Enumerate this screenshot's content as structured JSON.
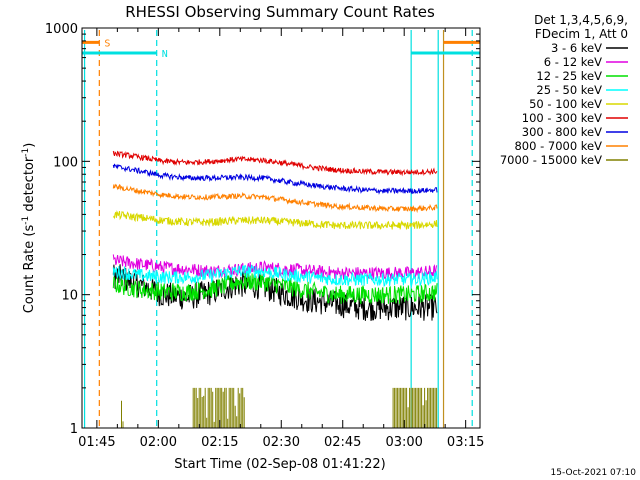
{
  "chart_data": {
    "type": "line",
    "title": "RHESSI Observing Summary Count Rates",
    "xlabel": "Start Time (02-Sep-08 01:41:22)",
    "ylabel_main": "Count Rate (s",
    "ylabel_sup1": "-1",
    "ylabel_mid": " detector",
    "ylabel_sup2": "-1",
    "ylabel_end": ")",
    "y_scale": "log",
    "ylim": [
      1,
      1000
    ],
    "xlim_minutes": [
      101.37,
      198.5
    ],
    "y_ticks": [
      {
        "value": 1,
        "label": "1"
      },
      {
        "value": 10,
        "label": "10"
      },
      {
        "value": 100,
        "label": "100"
      },
      {
        "value": 1000,
        "label": "1000"
      }
    ],
    "x_ticks": [
      {
        "minutes": 105,
        "label": "01:45"
      },
      {
        "minutes": 120,
        "label": "02:00"
      },
      {
        "minutes": 135,
        "label": "02:15"
      },
      {
        "minutes": 150,
        "label": "02:30"
      },
      {
        "minutes": 165,
        "label": "02:45"
      },
      {
        "minutes": 180,
        "label": "03:00"
      },
      {
        "minutes": 195,
        "label": "03:15"
      }
    ],
    "legend_title_1": "Det 1,3,4,5,6,9,",
    "legend_title_2": "FDecim 1, Att 0",
    "legend_placement": "right",
    "series": [
      {
        "name": "3 - 6 keV",
        "color": "#000000",
        "time_range": [
          109,
          188
        ],
        "values": [
          14,
          12,
          10,
          9.5,
          10.5,
          12,
          11.5,
          10,
          9,
          8.5,
          8,
          8,
          8,
          8
        ]
      },
      {
        "name": "6 - 12 keV",
        "color": "#e000e0",
        "time_range": [
          109,
          188
        ],
        "values": [
          18,
          17,
          16,
          15.5,
          15,
          15.5,
          16,
          15.5,
          15,
          14.5,
          14.5,
          14.5,
          14.5,
          15
        ]
      },
      {
        "name": "12 - 25 keV",
        "color": "#00e000",
        "time_range": [
          109,
          188
        ],
        "values": [
          12,
          11,
          10.5,
          10.5,
          11,
          12.5,
          12.5,
          11.5,
          10.5,
          10,
          10,
          10,
          10,
          10.5
        ]
      },
      {
        "name": "25 - 50 keV",
        "color": "#00ffff",
        "time_range": [
          109,
          188
        ],
        "values": [
          15,
          14,
          13.5,
          13.5,
          14,
          15,
          15,
          14,
          13.5,
          13,
          13,
          13,
          13,
          13.5
        ]
      },
      {
        "name": "50 - 100 keV",
        "color": "#d8d800",
        "time_range": [
          109,
          188
        ],
        "values": [
          40,
          38,
          36,
          35,
          35,
          36,
          36,
          35,
          34,
          33,
          33,
          33,
          33,
          34
        ]
      },
      {
        "name": "100 - 300 keV",
        "color": "#e00000",
        "time_range": [
          109,
          188
        ],
        "values": [
          115,
          108,
          100,
          98,
          100,
          104,
          102,
          96,
          90,
          86,
          84,
          83,
          83,
          84
        ]
      },
      {
        "name": "300 - 800 keV",
        "color": "#0000e0",
        "time_range": [
          109,
          188
        ],
        "values": [
          92,
          85,
          78,
          75,
          75,
          76,
          75,
          70,
          66,
          63,
          61,
          60,
          60,
          61
        ]
      },
      {
        "name": "800 - 7000 keV",
        "color": "#ff8000",
        "time_range": [
          109,
          188
        ],
        "values": [
          65,
          60,
          56,
          54,
          54,
          55,
          54,
          51,
          48,
          46,
          45,
          44,
          44,
          45
        ]
      },
      {
        "name": "7000 - 15000 keV",
        "color": "#808000",
        "time_range": [
          109,
          188
        ],
        "values": [
          1,
          1,
          1,
          1,
          1,
          1,
          1,
          1,
          1,
          1,
          1,
          1,
          1,
          1
        ]
      }
    ],
    "flag_bars": [
      {
        "label": "S",
        "color": "#ff8000",
        "y_value": 780,
        "segments": [
          [
            101.37,
            105.6
          ],
          [
            189.6,
            198.5
          ]
        ]
      },
      {
        "label": "N",
        "color": "#00e0e0",
        "y_value": 650,
        "segments": [
          [
            101.37,
            119.6
          ],
          [
            181.7,
            198.5
          ]
        ]
      }
    ],
    "vertical_lines": [
      {
        "color": "#00e0e0",
        "style": "solid",
        "minutes": 102.0
      },
      {
        "color": "#ff8000",
        "style": "dashed",
        "minutes": 105.6
      },
      {
        "color": "#00e0e0",
        "style": "dashed",
        "minutes": 119.6
      },
      {
        "color": "#00e0e0",
        "style": "solid",
        "minutes": 181.7
      },
      {
        "color": "#00e0e0",
        "style": "solid",
        "minutes": 188.3
      },
      {
        "color": "#c09020",
        "style": "solid",
        "minutes": 189.6
      },
      {
        "color": "#00e0e0",
        "style": "dashed",
        "minutes": 196.6
      }
    ],
    "spike_bands": [
      {
        "color": "#808000",
        "range": [
          128.5,
          141.0
        ],
        "top_value": 2.0
      },
      {
        "color": "#808000",
        "range": [
          177.3,
          188.0
        ],
        "top_value": 2.0
      },
      {
        "color": "#808000",
        "range": [
          111.0,
          111.5
        ],
        "top_value": 1.6
      }
    ]
  },
  "footer": {
    "date_stamp": "15-Oct-2021 07:10"
  }
}
